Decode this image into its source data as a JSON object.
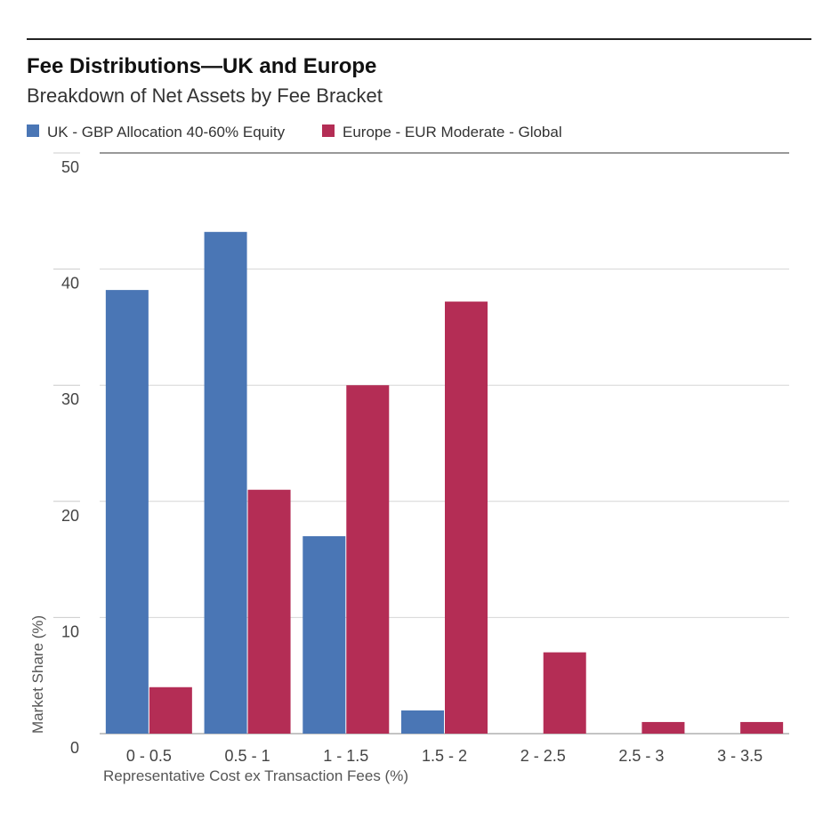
{
  "header": {
    "title": "Fee Distributions—UK and Europe",
    "subtitle": "Breakdown of Net Assets by Fee Bracket"
  },
  "chart_data": {
    "type": "bar",
    "title": "Fee Distributions—UK and Europe",
    "subtitle": "Breakdown of Net Assets by Fee Bracket",
    "xlabel": "Representative Cost ex Transaction Fees (%)",
    "ylabel": "Market Share (%)",
    "ylim": [
      0,
      50
    ],
    "yticks": [
      0,
      10,
      20,
      30,
      40,
      50
    ],
    "grid": true,
    "legend_position": "top-left",
    "categories": [
      "0 - 0.5",
      "0.5 - 1",
      "1 - 1.5",
      "1.5 - 2",
      "2 - 2.5",
      "2.5 - 3",
      "3 - 3.5"
    ],
    "series": [
      {
        "name": "UK - GBP Allocation 40-60% Equity",
        "color": "#4a76b5",
        "values": [
          38.2,
          43.2,
          17.0,
          2.0,
          0,
          0,
          0
        ]
      },
      {
        "name": "Europe - EUR Moderate - Global",
        "color": "#b42d55",
        "values": [
          4.0,
          21.0,
          30.0,
          37.2,
          7.0,
          1.0,
          1.0
        ]
      }
    ]
  }
}
